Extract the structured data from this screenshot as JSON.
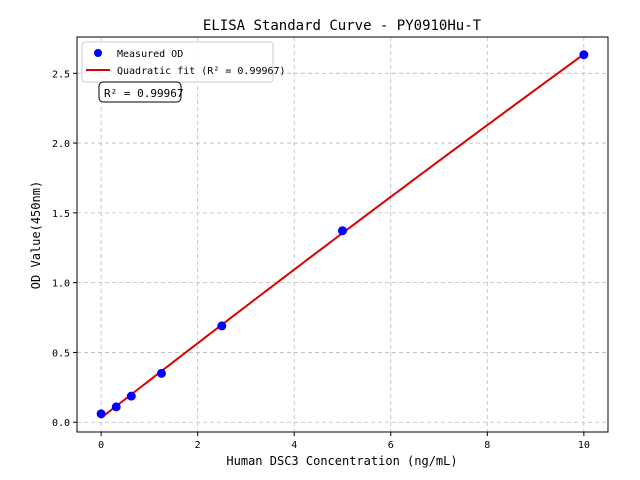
{
  "chart_data": {
    "type": "scatter",
    "title": "ELISA Standard Curve - PY0910Hu-T",
    "xlabel": "Human DSC3 Concentration (ng/mL)",
    "ylabel": "OD Value(450nm)",
    "xlim": [
      -0.5,
      10.5
    ],
    "ylim": [
      -0.07,
      2.76
    ],
    "xticks": [
      0,
      2,
      4,
      6,
      8,
      10
    ],
    "xtick_labels": [
      "0",
      "2",
      "4",
      "6",
      "8",
      "10"
    ],
    "yticks": [
      0,
      0.5,
      1.0,
      1.5,
      2.0,
      2.5
    ],
    "ytick_labels": [
      "0.0",
      "0.5",
      "1.0",
      "1.5",
      "2.0",
      "2.5"
    ],
    "grid": true,
    "legend_position": "top-left",
    "series": [
      {
        "name": "Measured OD",
        "kind": "scatter",
        "color": "#0000ff",
        "x": [
          0,
          0.3125,
          0.625,
          1.25,
          2.5,
          5,
          10
        ],
        "y": [
          0.06,
          0.11,
          0.187,
          0.35,
          0.69,
          1.372,
          2.633
        ]
      },
      {
        "name": "Quadratic fit (R² = 0.99967)",
        "kind": "line",
        "color": "#dd0000"
      }
    ],
    "annotation": "R² = 0.99967"
  }
}
